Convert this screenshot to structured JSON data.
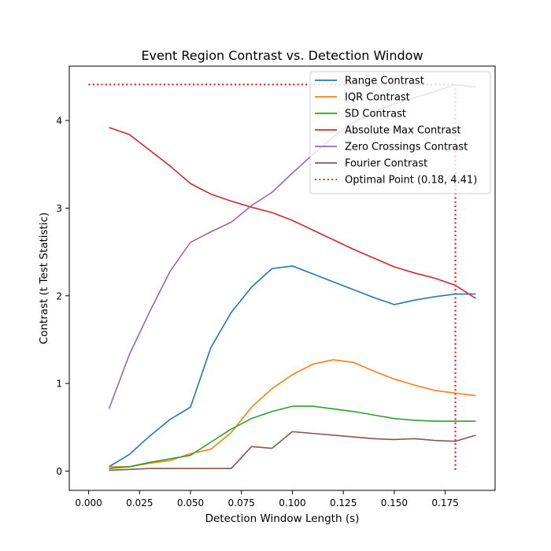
{
  "chart_data": {
    "type": "line",
    "title": "Event Region Contrast vs. Detection Window",
    "xlabel": "Detection Window Length (s)",
    "ylabel": "Contrast (t Test Statistic)",
    "xlim": [
      -0.0095,
      0.1995
    ],
    "ylim": [
      -0.22,
      4.62
    ],
    "x_ticks": [
      0.0,
      0.025,
      0.05,
      0.075,
      0.1,
      0.125,
      0.15,
      0.175
    ],
    "x_tick_labels": [
      "0.000",
      "0.025",
      "0.050",
      "0.075",
      "0.100",
      "0.125",
      "0.150",
      "0.175"
    ],
    "y_ticks": [
      0,
      1,
      2,
      3,
      4
    ],
    "y_tick_labels": [
      "0",
      "1",
      "2",
      "3",
      "4"
    ],
    "grid": false,
    "legend_position": "top-right",
    "x": [
      0.01,
      0.02,
      0.03,
      0.04,
      0.05,
      0.06,
      0.07,
      0.08,
      0.09,
      0.1,
      0.11,
      0.12,
      0.13,
      0.14,
      0.15,
      0.16,
      0.17,
      0.18,
      0.19
    ],
    "series": [
      {
        "name": "Range Contrast",
        "color": "#1f77b4",
        "values": [
          0.05,
          0.19,
          0.4,
          0.59,
          0.73,
          1.41,
          1.81,
          2.1,
          2.31,
          2.34,
          2.25,
          2.16,
          2.07,
          1.98,
          1.9,
          1.95,
          1.99,
          2.02,
          2.02
        ]
      },
      {
        "name": "IQR Contrast",
        "color": "#ff7f0e",
        "values": [
          0.05,
          0.05,
          0.09,
          0.12,
          0.2,
          0.25,
          0.44,
          0.73,
          0.94,
          1.1,
          1.22,
          1.27,
          1.24,
          1.14,
          1.05,
          0.98,
          0.92,
          0.89,
          0.86
        ]
      },
      {
        "name": "SD Contrast",
        "color": "#2ca02c",
        "values": [
          0.03,
          0.05,
          0.1,
          0.14,
          0.18,
          0.33,
          0.48,
          0.6,
          0.68,
          0.74,
          0.74,
          0.71,
          0.68,
          0.64,
          0.6,
          0.58,
          0.57,
          0.57,
          0.57
        ]
      },
      {
        "name": "Absolute Max Contrast",
        "color": "#d62728",
        "values": [
          3.92,
          3.84,
          3.66,
          3.48,
          3.28,
          3.16,
          3.08,
          3.01,
          2.95,
          2.86,
          2.75,
          2.64,
          2.53,
          2.43,
          2.33,
          2.26,
          2.2,
          2.12,
          1.97
        ]
      },
      {
        "name": "Zero Crossings Contrast",
        "color": "#9467bd",
        "values": [
          0.71,
          1.33,
          1.82,
          2.28,
          2.61,
          2.73,
          2.84,
          3.03,
          3.18,
          3.4,
          3.61,
          3.81,
          3.98,
          4.1,
          4.19,
          4.26,
          4.33,
          4.41,
          4.38
        ]
      },
      {
        "name": "Fourier Contrast",
        "color": "#8c564b",
        "values": [
          0.01,
          0.02,
          0.03,
          0.03,
          0.03,
          0.03,
          0.03,
          0.28,
          0.26,
          0.45,
          0.43,
          0.41,
          0.39,
          0.37,
          0.36,
          0.37,
          0.35,
          0.34,
          0.41
        ]
      }
    ],
    "optimal_point": {
      "name": "Optimal Point (0.18, 4.41)",
      "x": 0.18,
      "y": 4.41,
      "color": "#ff0000"
    }
  }
}
